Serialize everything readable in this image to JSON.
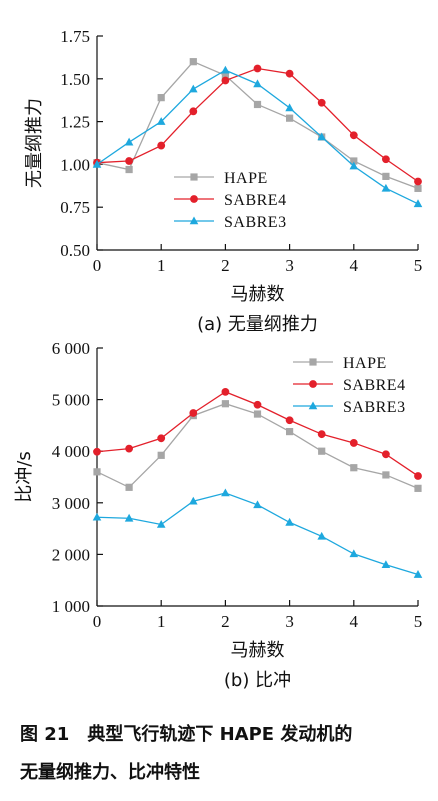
{
  "charts": [
    {
      "type": "line",
      "x": [
        0,
        0.5,
        1,
        1.5,
        2,
        2.5,
        3,
        3.5,
        4,
        4.5,
        5
      ],
      "xlabel": "马赫数",
      "ylabel": "无量纲推力",
      "subtitle": "(a) 无量纲推力",
      "xlim": [
        0,
        5
      ],
      "ylim": [
        0.5,
        1.75
      ],
      "xticks": [
        "0",
        "1",
        "2",
        "3",
        "4",
        "5"
      ],
      "yticks": [
        "0.50",
        "0.75",
        "1.00",
        "1.25",
        "1.50",
        "1.75"
      ],
      "legend": "center",
      "series": [
        {
          "name": "HAPE",
          "color": "#a6a6a6",
          "marker": "square",
          "values": [
            1.01,
            0.97,
            1.39,
            1.6,
            1.52,
            1.35,
            1.27,
            1.16,
            1.02,
            0.93,
            0.86
          ]
        },
        {
          "name": "SABRE4",
          "color": "#e3202b",
          "marker": "circle",
          "values": [
            1.01,
            1.02,
            1.11,
            1.31,
            1.49,
            1.56,
            1.53,
            1.36,
            1.17,
            1.03,
            0.9
          ]
        },
        {
          "name": "SABRE3",
          "color": "#1ea8de",
          "marker": "triangle",
          "values": [
            1.0,
            1.13,
            1.25,
            1.44,
            1.55,
            1.47,
            1.33,
            1.16,
            0.99,
            0.86,
            0.77
          ]
        }
      ]
    },
    {
      "type": "line",
      "x": [
        0,
        0.5,
        1,
        1.5,
        2,
        2.5,
        3,
        3.5,
        4,
        4.5,
        5
      ],
      "xlabel": "马赫数",
      "ylabel": "比冲/s",
      "subtitle": "(b) 比冲",
      "xlim": [
        0,
        5
      ],
      "ylim": [
        1000,
        6000
      ],
      "xticks": [
        "0",
        "1",
        "2",
        "3",
        "4",
        "5"
      ],
      "yticks": [
        "1 000",
        "2 000",
        "3 000",
        "4 000",
        "5 000",
        "6 000"
      ],
      "legend": "top-right",
      "series": [
        {
          "name": "HAPE",
          "color": "#a6a6a6",
          "marker": "square",
          "values": [
            3600,
            3300,
            3920,
            4690,
            4920,
            4720,
            4380,
            4000,
            3680,
            3540,
            3280
          ]
        },
        {
          "name": "SABRE4",
          "color": "#e3202b",
          "marker": "circle",
          "values": [
            3990,
            4050,
            4250,
            4740,
            5150,
            4900,
            4600,
            4330,
            4160,
            3940,
            3520
          ]
        },
        {
          "name": "SABRE3",
          "color": "#1ea8de",
          "marker": "triangle",
          "values": [
            2720,
            2700,
            2580,
            3030,
            3190,
            2960,
            2620,
            2350,
            2010,
            1800,
            1610
          ]
        }
      ]
    }
  ],
  "caption": {
    "number": "图 21",
    "text_line1": "典型飞行轨迹下 HAPE 发动机的",
    "text_line2": "无量纲推力、比冲特性"
  }
}
